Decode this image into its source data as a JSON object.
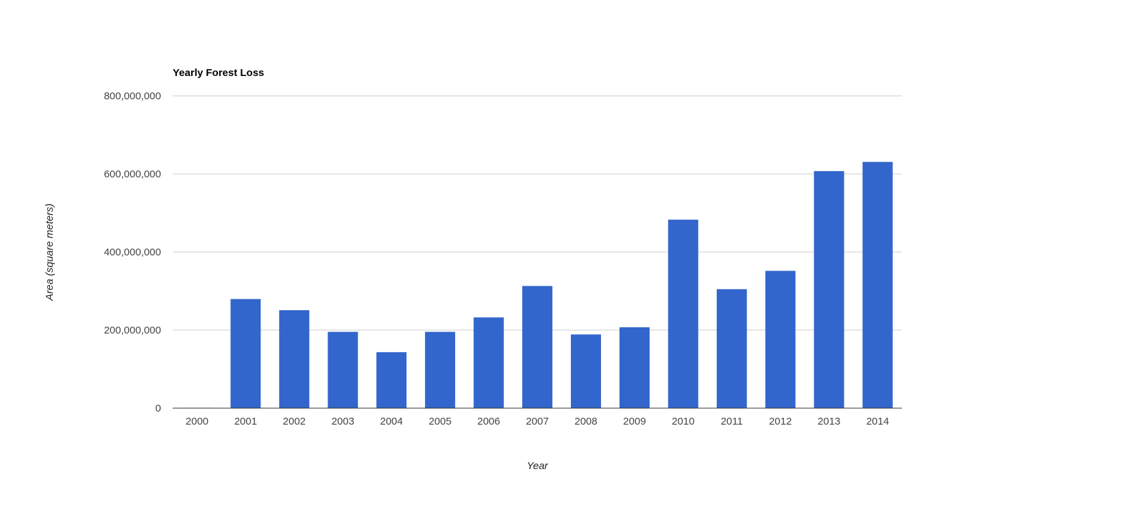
{
  "chart_data": {
    "type": "bar",
    "title": "Yearly Forest Loss",
    "xlabel": "Year",
    "ylabel": "Area (square meters)",
    "categories": [
      "2000",
      "2001",
      "2002",
      "2003",
      "2004",
      "2005",
      "2006",
      "2007",
      "2008",
      "2009",
      "2010",
      "2011",
      "2012",
      "2013",
      "2014"
    ],
    "values": [
      1000000,
      279600000,
      251000000,
      195500000,
      143400000,
      195500000,
      232500000,
      313000000,
      188800000,
      207300000,
      482900000,
      304800000,
      351800000,
      607300000,
      630800000
    ],
    "ylim": [
      0,
      800000000
    ],
    "yticks": [
      0,
      200000000,
      400000000,
      600000000,
      800000000
    ],
    "ytick_labels": [
      "0",
      "200,000,000",
      "400,000,000",
      "600,000,000",
      "800,000,000"
    ],
    "grid": true,
    "legend": "none",
    "bar_color": "#3366cc"
  }
}
